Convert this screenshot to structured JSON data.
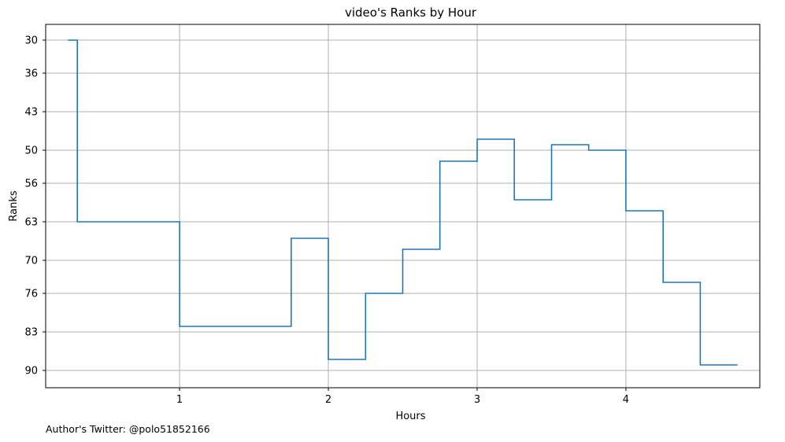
{
  "chart_data": {
    "type": "line",
    "drawstyle": "steps",
    "title": "video's Ranks by Hour",
    "xlabel": "Hours",
    "ylabel": "Ranks",
    "xlim": [
      0.1,
      4.9
    ],
    "ylim": [
      30,
      90
    ],
    "y_inverted": true,
    "grid": true,
    "x_ticks": [
      1,
      2,
      3,
      4
    ],
    "y_ticks": [
      30,
      36,
      43,
      50,
      56,
      63,
      70,
      76,
      83,
      90
    ],
    "color": "#1f77b4",
    "x": [
      0.25,
      0.375,
      0.625,
      0.875,
      1.125,
      1.375,
      1.625,
      1.875,
      2.125,
      2.375,
      2.625,
      2.875,
      3.125,
      3.375,
      3.625,
      3.875,
      4.125,
      4.375,
      4.625,
      4.75
    ],
    "values": [
      30,
      63,
      63,
      63,
      82,
      82,
      82,
      66,
      88,
      76,
      68,
      52,
      48,
      59,
      49,
      50,
      61,
      74,
      89,
      89
    ]
  },
  "footer": {
    "text": "Author's Twitter: @polo51852166"
  }
}
